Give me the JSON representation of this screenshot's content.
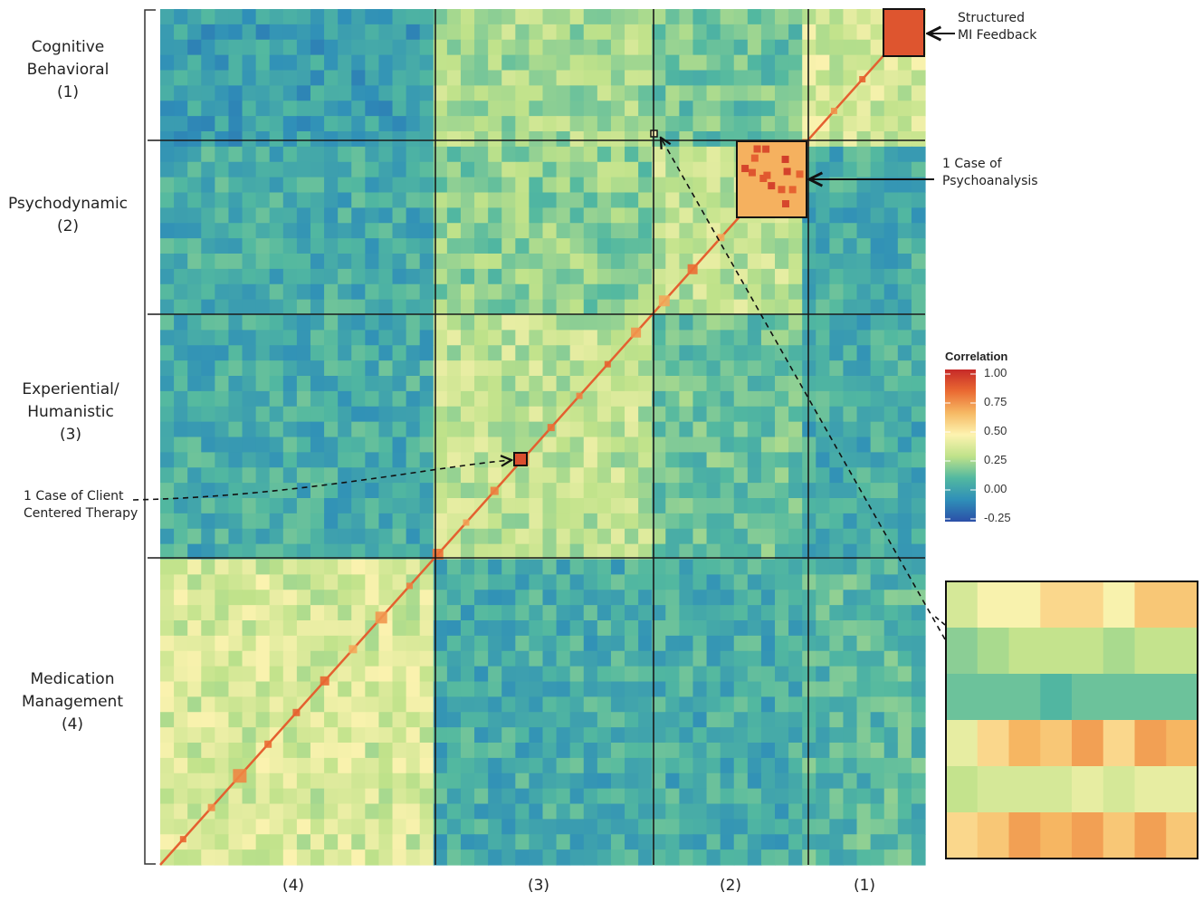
{
  "row_labels": [
    {
      "text": "Cognitive\nBehavioral\n(1)"
    },
    {
      "text": "Psychodynamic\n(2)"
    },
    {
      "text": "Experiential/\nHumanistic\n(3)"
    },
    {
      "text": "Medication\nManagement\n(4)"
    }
  ],
  "col_labels": [
    "(4)",
    "(3)",
    "(2)",
    "(1)"
  ],
  "annotations": {
    "mi": "Structured\nMI Feedback",
    "psychoanalysis": "1 Case of\nPsychoanalysis",
    "client_centered": "1 Case of Client\nCentered Therapy"
  },
  "legend": {
    "title": "Correlation",
    "ticks": [
      "1.00",
      "0.75",
      "0.50",
      "0.25",
      "0.00",
      "-0.25"
    ]
  },
  "colors": {
    "scale": [
      "#2b4fa8",
      "#2f8fb8",
      "#52b8a0",
      "#bfe28a",
      "#fdf3b0",
      "#f6b964",
      "#ea6a32",
      "#c62a28"
    ],
    "grid_line": "#1a1a1a"
  },
  "chart_data": {
    "type": "heatmap",
    "title": "",
    "legend_title": "Correlation",
    "value_range": [
      -0.25,
      1.0
    ],
    "rows": [
      "Cognitive Behavioral (1)",
      "Psychodynamic (2)",
      "Experiential/Humanistic (3)",
      "Medication Management (4)"
    ],
    "columns": [
      "(4)",
      "(3)",
      "(2)",
      "(1)"
    ],
    "block_mean_correlation": [
      [
        0.0,
        0.25,
        0.15,
        0.35
      ],
      [
        0.05,
        0.2,
        0.3,
        0.05
      ],
      [
        0.05,
        0.3,
        0.15,
        0.05
      ],
      [
        0.35,
        0.05,
        0.05,
        0.1
      ]
    ],
    "zoom_inset": {
      "rows": 6,
      "cols": 8,
      "values": [
        [
          0.35,
          0.45,
          0.45,
          0.55,
          0.55,
          0.45,
          0.6,
          0.6
        ],
        [
          0.2,
          0.25,
          0.3,
          0.3,
          0.3,
          0.25,
          0.3,
          0.3
        ],
        [
          0.15,
          0.15,
          0.15,
          0.1,
          0.15,
          0.15,
          0.15,
          0.15
        ],
        [
          0.4,
          0.55,
          0.65,
          0.6,
          0.7,
          0.55,
          0.7,
          0.65
        ],
        [
          0.3,
          0.35,
          0.35,
          0.35,
          0.4,
          0.35,
          0.4,
          0.4
        ],
        [
          0.55,
          0.6,
          0.7,
          0.65,
          0.7,
          0.6,
          0.7,
          0.6
        ]
      ]
    }
  }
}
